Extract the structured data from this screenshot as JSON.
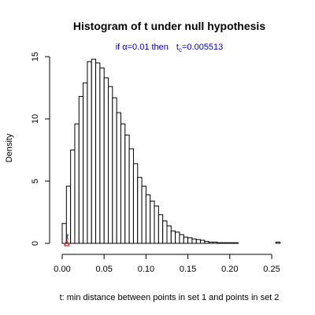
{
  "chart_data": {
    "type": "bar",
    "title": "Histogram of t under null hypothesis",
    "subtitle": {
      "prefix": "if ",
      "alpha_symbol": "α",
      "alpha_value": "=0.01 then",
      "t_symbol": "t",
      "t_sub": "c",
      "t_value": "=0.005513"
    },
    "xlabel": "t: min distance between points in set 1 and points in set 2",
    "ylabel": "Density",
    "xlim": [
      0.0,
      0.26
    ],
    "ylim": [
      0,
      15.8
    ],
    "xticks": [
      0.0,
      0.05,
      0.1,
      0.15,
      0.2,
      0.25
    ],
    "xtick_labels": [
      "0.00",
      "0.05",
      "0.10",
      "0.15",
      "0.20",
      "0.25"
    ],
    "yticks": [
      0,
      5,
      10,
      15
    ],
    "ytick_labels": [
      "0",
      "5",
      "10",
      "15"
    ],
    "bin_width": 0.005,
    "bin_starts": [
      0.0,
      0.005,
      0.01,
      0.015,
      0.02,
      0.025,
      0.03,
      0.035,
      0.04,
      0.045,
      0.05,
      0.055,
      0.06,
      0.065,
      0.07,
      0.075,
      0.08,
      0.085,
      0.09,
      0.095,
      0.1,
      0.105,
      0.11,
      0.115,
      0.12,
      0.125,
      0.13,
      0.135,
      0.14,
      0.145,
      0.15,
      0.155,
      0.16,
      0.165,
      0.17,
      0.175,
      0.18,
      0.185,
      0.19,
      0.195,
      0.2,
      0.205,
      0.21,
      0.215,
      0.22,
      0.225,
      0.23,
      0.235,
      0.24,
      0.245,
      0.25,
      0.255
    ],
    "values": [
      1.6,
      4.6,
      7.5,
      9.6,
      11.8,
      12.9,
      14.6,
      14.8,
      14.5,
      14.1,
      13.3,
      12.6,
      11.7,
      10.5,
      9.6,
      8.7,
      7.6,
      6.4,
      5.3,
      4.6,
      3.9,
      3.4,
      3.0,
      2.3,
      1.8,
      1.4,
      1.0,
      0.9,
      0.7,
      0.5,
      0.45,
      0.35,
      0.3,
      0.25,
      0.15,
      0.1,
      0.1,
      0.05,
      0.05,
      0.05,
      0.05,
      0.05,
      0.0,
      0.0,
      0.0,
      0.0,
      0.0,
      0.0,
      0.0,
      0.0,
      0.0,
      0.1
    ],
    "critical_value": 0.005513,
    "marker": {
      "label": "t",
      "label_color": "#0000cc",
      "triangle_color": "#cc0000"
    }
  }
}
